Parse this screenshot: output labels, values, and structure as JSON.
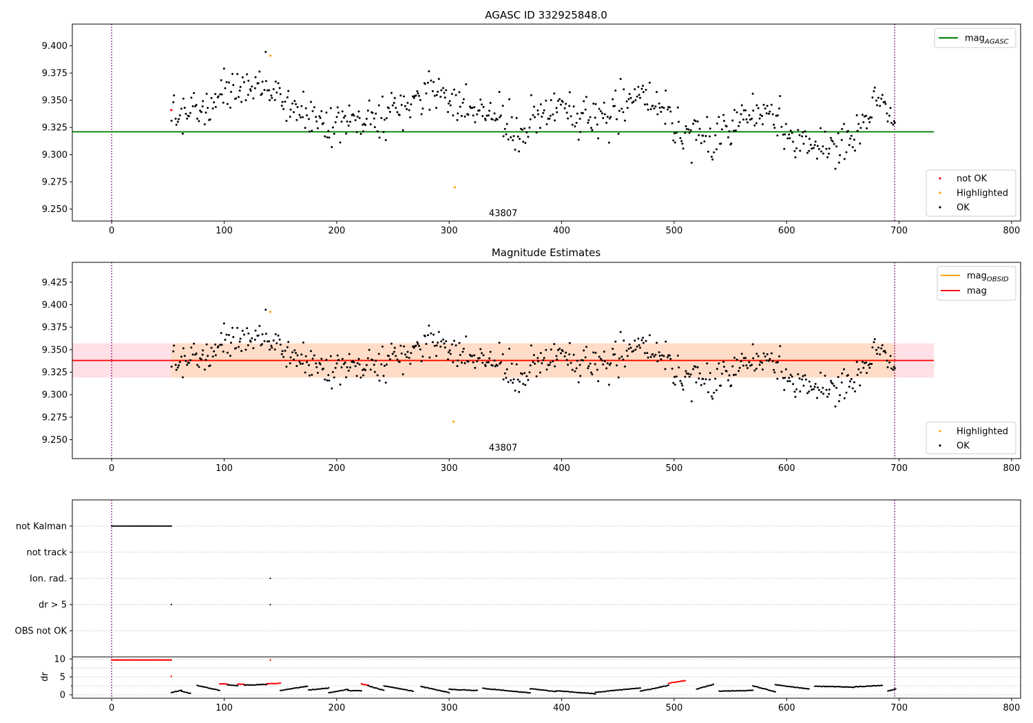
{
  "figure": {
    "title_top": "AGASC ID 332925848.0",
    "title_mid": "Magnitude Estimates"
  },
  "chart_data": [
    {
      "type": "scatter",
      "id": "top",
      "title": "AGASC ID 332925848.0",
      "xlabel": "",
      "ylabel": "",
      "xlim": [
        -35,
        808
      ],
      "ylim": [
        9.239,
        9.42
      ],
      "xticks": [
        0,
        100,
        200,
        300,
        400,
        500,
        600,
        700,
        800
      ],
      "yticks": [
        9.25,
        9.275,
        9.3,
        9.325,
        9.35,
        9.375,
        9.4
      ],
      "ytick_labels": [
        "9.250",
        "9.275",
        "9.300",
        "9.325",
        "9.350",
        "9.375",
        "9.400"
      ],
      "grid": false,
      "vlines": {
        "x": [
          0,
          696
        ],
        "color": "#800080",
        "style": "dotted"
      },
      "hline": {
        "name": "mag_AGASC",
        "y": 9.321,
        "x_range": [
          -35,
          731
        ],
        "color": "#008000"
      },
      "obsid_annotation": {
        "text": "43807",
        "x": 348,
        "y": 9.246
      },
      "legend_lines": [
        {
          "name": "mag",
          "subscript": "AGASC",
          "color": "#008000"
        }
      ],
      "legend_lines_position": "upper right",
      "legend_points": [
        {
          "name": "not OK",
          "color": "#ff0000"
        },
        {
          "name": "Highlighted",
          "color": "#ffa500"
        },
        {
          "name": "OK",
          "color": "#000000"
        }
      ],
      "legend_points_position": "lower right",
      "series": [
        {
          "name": "not OK",
          "color": "#ff0000",
          "x": [
            53
          ],
          "y": [
            9.341
          ]
        },
        {
          "name": "Highlighted",
          "color": "#ffa500",
          "x": [
            141,
            305
          ],
          "y": [
            9.391,
            9.27
          ]
        },
        {
          "name": "OK",
          "color": "#000000",
          "x_range": [
            53,
            697
          ],
          "count": 620,
          "seed": 7,
          "profile_x": [
            53,
            80,
            100,
            120,
            140,
            160,
            180,
            200,
            220,
            240,
            260,
            280,
            300,
            320,
            340,
            360,
            380,
            400,
            420,
            440,
            460,
            480,
            500,
            520,
            540,
            560,
            580,
            600,
            620,
            640,
            660,
            680,
            690,
            697
          ],
          "profile_y": [
            9.334,
            9.342,
            9.355,
            9.364,
            9.36,
            9.347,
            9.336,
            9.323,
            9.33,
            9.336,
            9.342,
            9.36,
            9.355,
            9.338,
            9.34,
            9.315,
            9.337,
            9.345,
            9.332,
            9.33,
            9.352,
            9.355,
            9.325,
            9.318,
            9.315,
            9.335,
            9.345,
            9.318,
            9.315,
            9.31,
            9.312,
            9.356,
            9.338,
            9.332
          ],
          "scatter": 0.012
        }
      ]
    },
    {
      "type": "scatter",
      "id": "mid",
      "title": "Magnitude Estimates",
      "xlabel": "",
      "ylabel": "",
      "xlim": [
        -35,
        808
      ],
      "ylim": [
        9.229,
        9.447
      ],
      "xticks": [
        0,
        100,
        200,
        300,
        400,
        500,
        600,
        700,
        800
      ],
      "yticks": [
        9.25,
        9.275,
        9.3,
        9.325,
        9.35,
        9.375,
        9.4,
        9.425
      ],
      "ytick_labels": [
        "9.250",
        "9.275",
        "9.300",
        "9.325",
        "9.350",
        "9.375",
        "9.400",
        "9.425"
      ],
      "grid": false,
      "vlines": {
        "x": [
          0,
          696
        ],
        "color": "#800080",
        "style": "dotted"
      },
      "band_outer": {
        "y": [
          9.319,
          9.357
        ],
        "x_range": [
          -35,
          731
        ],
        "color": "#ffe0e6"
      },
      "band_inner": {
        "y": [
          9.319,
          9.357
        ],
        "x_range": [
          53,
          697
        ],
        "color": "#ffdcc8"
      },
      "hline_mag": {
        "name": "mag",
        "y": 9.338,
        "x_range": [
          -35,
          731
        ],
        "color": "#ff0000"
      },
      "hline_obsid": {
        "name": "mag_OBSID",
        "y": 9.338,
        "x_range": [
          53,
          697
        ],
        "color": "#ffa500"
      },
      "obsid_annotation": {
        "text": "43807",
        "x": 348,
        "y": 9.241
      },
      "legend_lines": [
        {
          "name": "mag",
          "subscript": "OBSID",
          "color": "#ffa500"
        },
        {
          "name": "mag",
          "subscript": "",
          "color": "#ff0000"
        }
      ],
      "legend_lines_position": "upper right",
      "legend_points": [
        {
          "name": "Highlighted",
          "color": "#ffa500"
        },
        {
          "name": "OK",
          "color": "#000000"
        }
      ],
      "legend_points_position": "lower right",
      "series": [
        {
          "name": "Highlighted",
          "color": "#ffa500",
          "x": [
            141,
            304
          ],
          "y": [
            9.392,
            9.27
          ]
        },
        {
          "name": "OK",
          "color": "#000000",
          "same_as": "top"
        }
      ]
    },
    {
      "type": "scatter",
      "id": "flags",
      "xlabel": "",
      "ylabel": "",
      "xlim": [
        -35,
        808
      ],
      "categories": [
        "not Kalman",
        "not track",
        "Ion. rad.",
        "dr > 5",
        "OBS not OK"
      ],
      "grid": true,
      "vlines": {
        "x": [
          0,
          696
        ],
        "color": "#800080",
        "style": "dotted"
      },
      "series": [
        {
          "name": "not Kalman",
          "x_range": [
            0,
            53
          ],
          "count": 44,
          "color": "#000000"
        },
        {
          "name": "Ion. rad.",
          "x": [
            141
          ],
          "color": "#000000"
        },
        {
          "name": "dr > 5",
          "x": [
            53,
            141
          ],
          "color": "#000000"
        }
      ]
    },
    {
      "type": "scatter",
      "id": "dr",
      "ylabel": "dr",
      "xlabel": "",
      "xlim": [
        -35,
        808
      ],
      "ylim": [
        -0.5,
        10.5
      ],
      "xticks": [
        0,
        100,
        200,
        300,
        400,
        500,
        600,
        700,
        800
      ],
      "yticks": [
        0,
        5,
        10
      ],
      "grid": true,
      "vlines": {
        "x": [
          0,
          696
        ],
        "color": "#800080",
        "style": "dotted"
      },
      "series": [
        {
          "name": "dr (flagged)",
          "color": "#ff0000",
          "x_range": [
            0,
            53
          ],
          "count": 60,
          "y_const": 9.7
        },
        {
          "name": "dr (flagged)",
          "color": "#ff0000",
          "x": [
            53,
            141
          ],
          "y": [
            5.1,
            9.7
          ]
        },
        {
          "name": "dr (flagged)",
          "color": "#ff0000",
          "segments": [
            [
              96,
              103,
              3.1,
              3.0
            ],
            [
              112,
              118,
              3.0,
              2.9
            ],
            [
              138,
              150,
              3.1,
              3.2
            ],
            [
              222,
              228,
              3.0,
              2.7
            ],
            [
              495,
              510,
              3.2,
              4.0
            ]
          ]
        },
        {
          "name": "dr",
          "color": "#000000",
          "x_range": [
            53,
            697
          ],
          "count": 640,
          "seed": 11,
          "segments": [
            [
              53,
              62,
              0.6,
              1.3
            ],
            [
              62,
              70,
              1.0,
              0.4
            ],
            [
              76,
              96,
              2.6,
              1.2
            ],
            [
              103,
              112,
              2.8,
              2.5
            ],
            [
              118,
              138,
              2.7,
              2.9
            ],
            [
              150,
              174,
              1.2,
              2.4
            ],
            [
              175,
              193,
              1.3,
              1.9
            ],
            [
              193,
              210,
              0.6,
              1.5
            ],
            [
              210,
              222,
              1.2,
              1.1
            ],
            [
              228,
              242,
              2.5,
              1.2
            ],
            [
              242,
              268,
              2.5,
              1.0
            ],
            [
              275,
              300,
              2.3,
              0.6
            ],
            [
              300,
              325,
              1.5,
              1.2
            ],
            [
              330,
              372,
              1.8,
              0.5
            ],
            [
              372,
              395,
              1.7,
              0.9
            ],
            [
              395,
              430,
              1.1,
              0.3
            ],
            [
              430,
              470,
              0.7,
              1.9
            ],
            [
              470,
              495,
              1.0,
              2.6
            ],
            [
              520,
              535,
              1.6,
              2.9
            ],
            [
              540,
              570,
              1.0,
              1.2
            ],
            [
              570,
              590,
              2.5,
              0.8
            ],
            [
              590,
              620,
              2.8,
              1.6
            ],
            [
              625,
              660,
              2.4,
              2.1
            ],
            [
              660,
              685,
              2.2,
              2.6
            ],
            [
              690,
              697,
              1.0,
              1.6
            ]
          ]
        }
      ]
    }
  ]
}
